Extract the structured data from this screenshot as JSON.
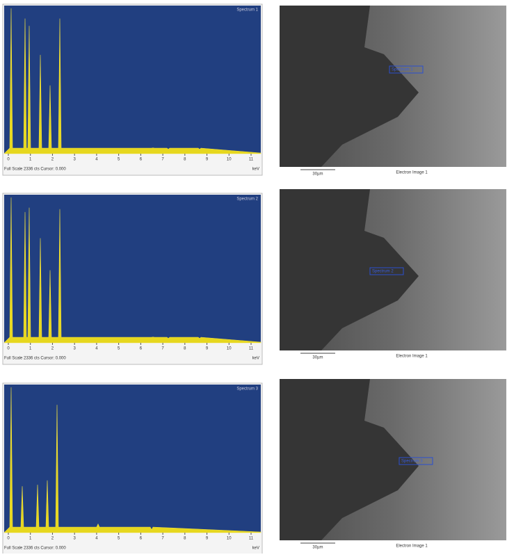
{
  "panels": [
    {
      "spectrum": {
        "label": "Spectrum 1",
        "ticks": [
          "0",
          "1",
          "2",
          "3",
          "4",
          "5",
          "6",
          "7",
          "8",
          "9",
          "10",
          "11"
        ],
        "unit": "keV",
        "footer": "Full Scale 2336 cts Cursor: 0.000"
      },
      "image": {
        "marker": "Spectrum 1",
        "scale": "30µm",
        "caption": "Electron Image 1"
      }
    },
    {
      "spectrum": {
        "label": "Spectrum 2",
        "ticks": [
          "0",
          "1",
          "2",
          "3",
          "4",
          "5",
          "6",
          "7",
          "8",
          "9",
          "10",
          "11"
        ],
        "unit": "keV",
        "footer": "Full Scale 2336 cts Cursor: 0.000"
      },
      "image": {
        "marker": "Spectrum 2",
        "scale": "30µm",
        "caption": "Electron Image 1"
      }
    },
    {
      "spectrum": {
        "label": "Spectrum 3",
        "ticks": [
          "0",
          "1",
          "2",
          "3",
          "4",
          "5",
          "6",
          "7",
          "8",
          "9",
          "10",
          "11"
        ],
        "unit": "keV",
        "footer": "Full Scale 2336 cts Cursor: 0.000"
      },
      "image": {
        "marker": "Spectrum 3",
        "scale": "30µm",
        "caption": "Electron Image 1"
      }
    }
  ]
}
